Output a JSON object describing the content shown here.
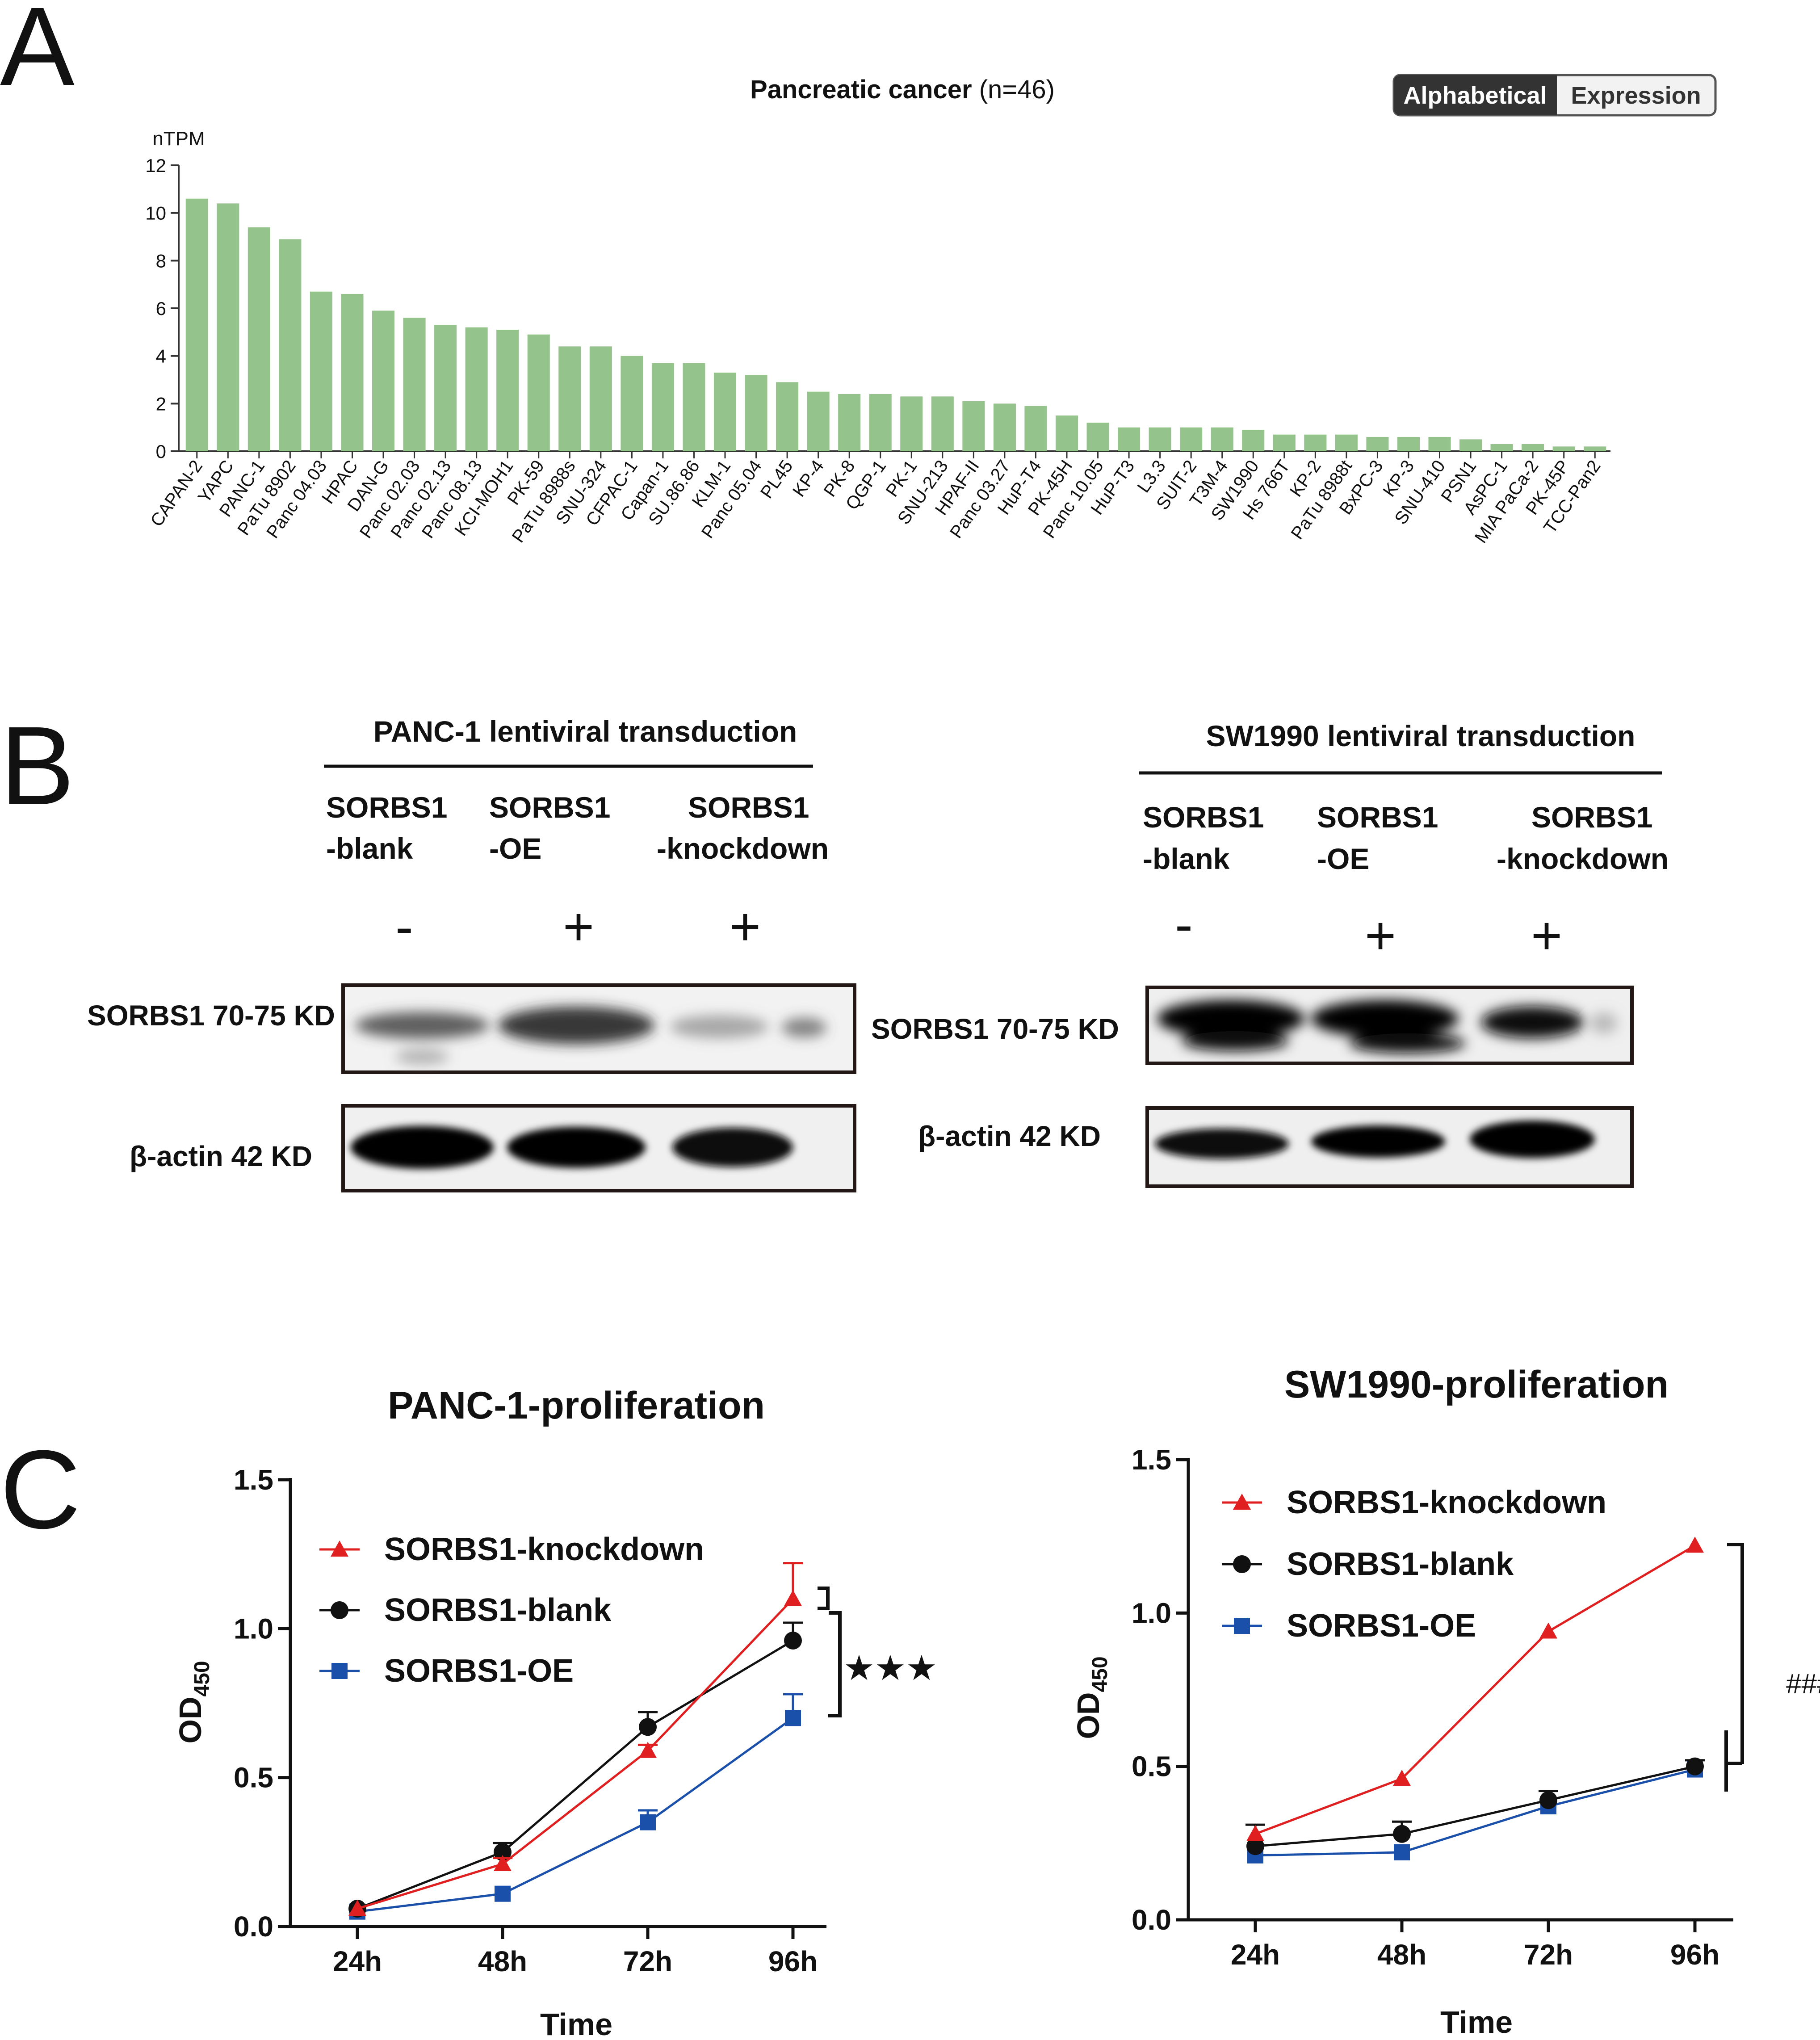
{
  "panel_labels": {
    "a": "A",
    "b": "B",
    "c": "C"
  },
  "panel_a": {
    "title_bold": "Pancreatic cancer",
    "title_rest": " (n=46)",
    "ylabel": "nTPM",
    "toggle": {
      "active": "Alphabetical",
      "inactive": "Expression"
    },
    "bar_color": "#95c38c"
  },
  "panel_b": {
    "panc1": {
      "header": "PANC-1  lentiviral transduction",
      "groups": [
        {
          "line1": "SORBS1",
          "line2": "-blank",
          "sign": "-"
        },
        {
          "line1": "SORBS1",
          "line2": "-OE",
          "sign": "+"
        },
        {
          "line1": "SORBS1",
          "line2": "-knockdown",
          "sign": "+"
        }
      ],
      "band1_label": "SORBS1 70-75 KD",
      "band2_label": "β-actin 42 KD"
    },
    "sw1990": {
      "header": "SW1990 lentiviral transduction",
      "groups": [
        {
          "line1": "SORBS1",
          "line2": "-blank",
          "sign": "-"
        },
        {
          "line1": "SORBS1",
          "line2": "-OE",
          "sign": "+"
        },
        {
          "line1": "SORBS1",
          "line2": "-knockdown",
          "sign": "+"
        }
      ],
      "band1_label": "SORBS1 70-75 KD",
      "band2_label": "β-actin 42 KD"
    }
  },
  "panel_c": {
    "panc1_significance": "★★★",
    "sw1990_significance": "###",
    "ylabel_main": "OD",
    "ylabel_sub": "450"
  },
  "chart_data": [
    {
      "type": "bar",
      "title": "Pancreatic cancer (n=46)",
      "xlabel": "",
      "ylabel": "nTPM",
      "ylim": [
        0,
        12
      ],
      "yticks": [
        0,
        2,
        4,
        6,
        8,
        10,
        12
      ],
      "categories": [
        "CAPAN-2",
        "YAPC",
        "PANC-1",
        "PaTu 8902",
        "Panc 04.03",
        "HPAC",
        "DAN-G",
        "Panc 02.03",
        "Panc 02.13",
        "Panc 08.13",
        "KCI-MOH1",
        "PK-59",
        "PaTu 8988s",
        "SNU-324",
        "CFPAC-1",
        "Capan-1",
        "SU.86.86",
        "KLM-1",
        "Panc 05.04",
        "PL45",
        "KP-4",
        "PK-8",
        "QGP-1",
        "PK-1",
        "SNU-213",
        "HPAF-II",
        "Panc 03.27",
        "HuP-T4",
        "PK-45H",
        "Panc 10.05",
        "HuP-T3",
        "L3.3",
        "SUIT-2",
        "T3M-4",
        "SW1990",
        "Hs 766T",
        "KP-2",
        "PaTu 8988t",
        "BxPC-3",
        "KP-3",
        "SNU-410",
        "PSN1",
        "AsPC-1",
        "MIA PaCa-2",
        "PK-45P",
        "TCC-Pan2"
      ],
      "values": [
        10.6,
        10.4,
        9.4,
        8.9,
        6.7,
        6.6,
        5.9,
        5.6,
        5.3,
        5.2,
        5.1,
        4.9,
        4.4,
        4.4,
        4.0,
        3.7,
        3.7,
        3.3,
        3.2,
        2.9,
        2.5,
        2.4,
        2.4,
        2.3,
        2.3,
        2.1,
        2.0,
        1.9,
        1.5,
        1.2,
        1.0,
        1.0,
        1.0,
        1.0,
        0.9,
        0.7,
        0.7,
        0.7,
        0.6,
        0.6,
        0.6,
        0.5,
        0.3,
        0.3,
        0.2,
        0.2
      ]
    },
    {
      "type": "line",
      "title": "PANC-1-proliferation",
      "xlabel": "Time",
      "ylabel": "OD450",
      "ylim": [
        0,
        1.5
      ],
      "yticks": [
        "0.0",
        "0.5",
        "1.0",
        "1.5"
      ],
      "x": [
        "24h",
        "48h",
        "72h",
        "96h"
      ],
      "series": [
        {
          "name": "SORBS1-knockdown",
          "color": "#e02020",
          "marker": "triangle",
          "values": [
            0.06,
            0.21,
            0.59,
            1.1
          ],
          "errors": [
            0.01,
            0.02,
            0.02,
            0.12
          ]
        },
        {
          "name": "SORBS1-blank",
          "color": "#111111",
          "marker": "circle",
          "values": [
            0.06,
            0.25,
            0.67,
            0.96
          ],
          "errors": [
            0.01,
            0.03,
            0.05,
            0.06
          ]
        },
        {
          "name": "SORBS1-OE",
          "color": "#1a4faa",
          "marker": "square",
          "values": [
            0.05,
            0.11,
            0.35,
            0.7
          ],
          "errors": [
            0.01,
            0.01,
            0.04,
            0.08
          ]
        }
      ]
    },
    {
      "type": "line",
      "title": "SW1990-proliferation",
      "xlabel": "Time",
      "ylabel": "OD450",
      "ylim": [
        0,
        1.5
      ],
      "yticks": [
        "0.0",
        "0.5",
        "1.0",
        "1.5"
      ],
      "x": [
        "24h",
        "48h",
        "72h",
        "96h"
      ],
      "series": [
        {
          "name": "SORBS1-knockdown",
          "color": "#e02020",
          "marker": "triangle",
          "values": [
            0.28,
            0.46,
            0.94,
            1.22
          ],
          "errors": [
            0.01,
            0.01,
            0.01,
            0.01
          ]
        },
        {
          "name": "SORBS1-blank",
          "color": "#111111",
          "marker": "circle",
          "values": [
            0.24,
            0.28,
            0.39,
            0.5
          ],
          "errors": [
            0.07,
            0.04,
            0.03,
            0.02
          ]
        },
        {
          "name": "SORBS1-OE",
          "color": "#1a4faa",
          "marker": "square",
          "values": [
            0.21,
            0.22,
            0.37,
            0.49
          ],
          "errors": [
            0.01,
            0.01,
            0.01,
            0.01
          ]
        }
      ]
    }
  ]
}
